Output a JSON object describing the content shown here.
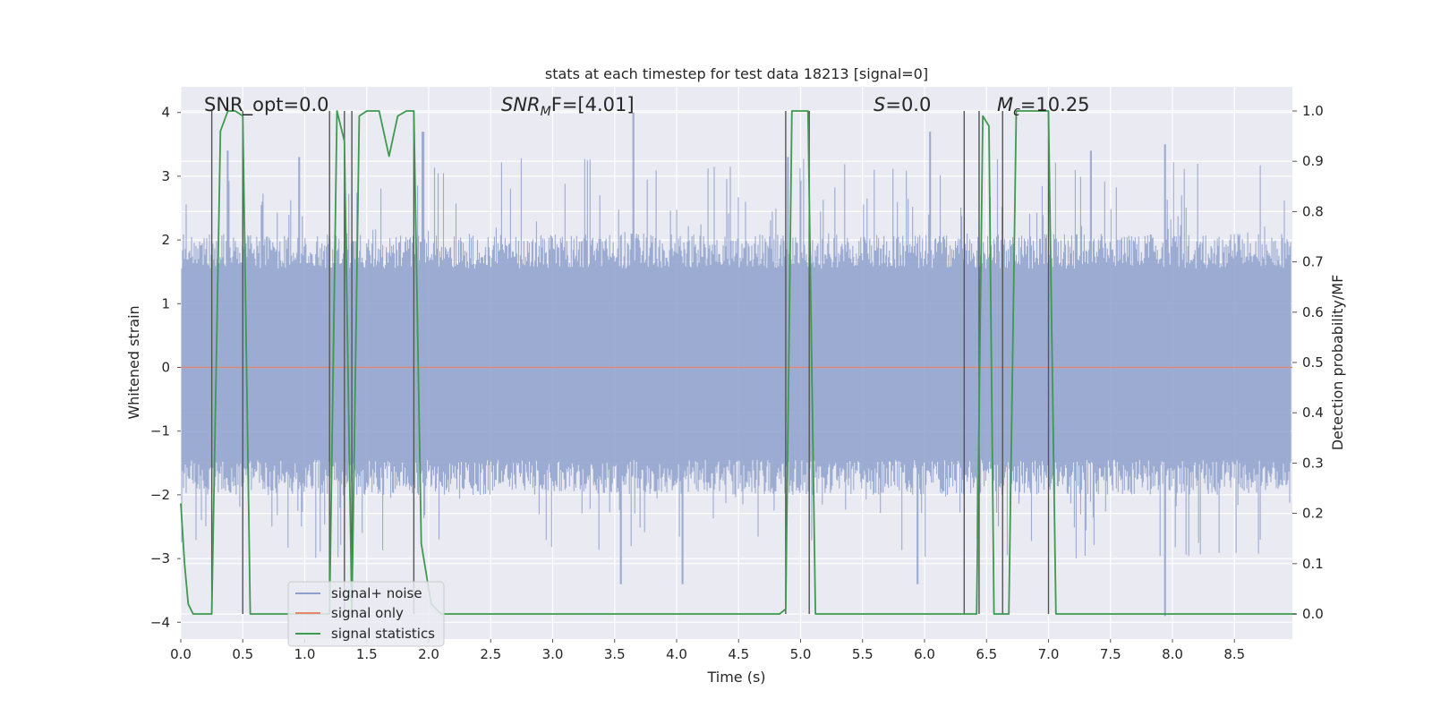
{
  "chart_data": {
    "type": "line",
    "title": "stats at each timestep for test data 18213 [signal=0]",
    "xlabel": "Time (s)",
    "ylabel": "Whitened strain",
    "y2label": "Detection probability/MF",
    "xlim": [
      0.0,
      9.0
    ],
    "ylim": [
      -4.2,
      4.2
    ],
    "y2lim": [
      -0.05,
      1.05
    ],
    "xticks": [
      "0.0",
      "0.5",
      "1.0",
      "1.5",
      "2.0",
      "2.5",
      "3.0",
      "3.5",
      "4.0",
      "4.5",
      "5.0",
      "5.5",
      "6.0",
      "6.5",
      "7.0",
      "7.5",
      "8.0",
      "8.5"
    ],
    "yticks": [
      "−4",
      "−3",
      "−2",
      "−1",
      "0",
      "1",
      "2",
      "3",
      "4"
    ],
    "y2ticks": [
      "0.0",
      "0.1",
      "0.2",
      "0.3",
      "0.4",
      "0.5",
      "0.6",
      "0.7",
      "0.8",
      "0.9",
      "1.0"
    ],
    "grid": true,
    "legend_position": "lower-left",
    "annotations": {
      "snr_opt": "SNR_opt=0.0",
      "snr_mf_base": "SNR",
      "snr_mf_sub": "M",
      "snr_mf_rest": "F=[4.01]",
      "s_italic": "S",
      "s_rest": "=0.0",
      "mc_italic": "M",
      "mc_sub": "c",
      "mc_rest": "=10.25"
    },
    "series": [
      {
        "name": "signal+ noise",
        "color": "#8da0cb",
        "axis": "left",
        "note_values": "dense noise, typical amplitude within ±1.7, peaks to about ±4",
        "peaks": [
          {
            "x": 0.37,
            "y": 3.4
          },
          {
            "x": 0.95,
            "y": 3.3
          },
          {
            "x": 1.95,
            "y": 3.7
          },
          {
            "x": 3.65,
            "y": 4.0
          },
          {
            "x": 4.9,
            "y": 3.3
          },
          {
            "x": 6.05,
            "y": 3.7
          },
          {
            "x": 7.35,
            "y": 3.4
          },
          {
            "x": 7.95,
            "y": 3.5
          },
          {
            "x": 3.55,
            "y": -3.4
          },
          {
            "x": 4.05,
            "y": -3.4
          },
          {
            "x": 5.95,
            "y": -3.4
          },
          {
            "x": 7.95,
            "y": -3.9
          }
        ]
      },
      {
        "name": "signal only",
        "color": "#e5866b",
        "axis": "left",
        "x": [
          0.0,
          9.0
        ],
        "values": [
          0.0,
          0.0
        ]
      },
      {
        "name": "signal statistics",
        "color": "#3d9a4e",
        "axis": "right",
        "x": [
          0.0,
          0.03,
          0.06,
          0.1,
          0.15,
          0.2,
          0.25,
          0.32,
          0.38,
          0.44,
          0.5,
          0.56,
          1.2,
          1.26,
          1.32,
          1.38,
          1.44,
          1.5,
          1.6,
          1.68,
          1.75,
          1.82,
          1.88,
          1.94,
          2.02,
          2.1,
          3.56,
          4.83,
          4.88,
          4.93,
          5.06,
          5.12,
          5.18,
          6.3,
          6.37,
          6.42,
          6.47,
          6.52,
          6.56,
          6.61,
          6.68,
          6.74,
          7.0,
          7.06,
          7.12,
          9.0
        ],
        "values": [
          0.22,
          0.1,
          0.02,
          0.0,
          0.0,
          0.0,
          0.0,
          0.96,
          1.0,
          1.0,
          0.99,
          0.0,
          0.0,
          1.0,
          0.94,
          0.0,
          0.99,
          1.0,
          1.0,
          0.91,
          0.99,
          1.0,
          1.0,
          0.14,
          0.02,
          0.0,
          0.0,
          0.0,
          0.01,
          1.0,
          1.0,
          0.0,
          0.0,
          0.0,
          0.0,
          0.0,
          0.99,
          0.97,
          0.0,
          0.0,
          0.0,
          1.0,
          1.0,
          0.0,
          0.0,
          0.0
        ]
      }
    ],
    "vlines": [
      0.25,
      0.5,
      1.2,
      1.32,
      1.38,
      1.88,
      4.88,
      5.07,
      6.32,
      6.44,
      6.63,
      7.0
    ]
  }
}
